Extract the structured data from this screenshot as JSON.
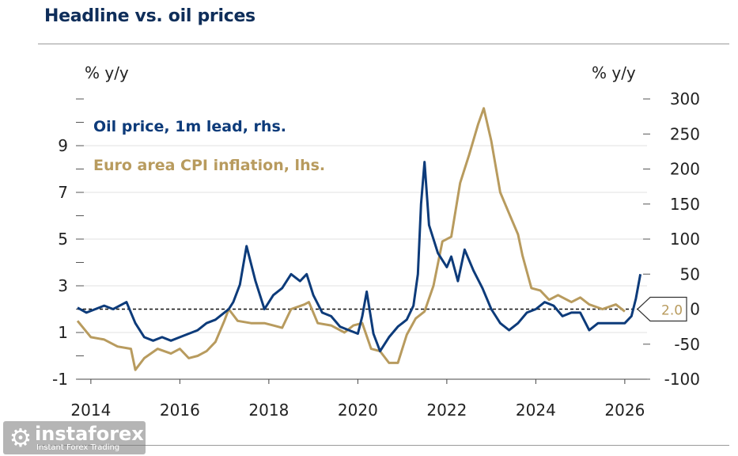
{
  "header": {
    "title": "Headline vs. oil prices"
  },
  "colors": {
    "oil": "#0d3b7a",
    "cpi": "#b89b5e",
    "grid": "#e2e2e2",
    "title": "#0f2e5a"
  },
  "logo": {
    "name": "instaforex",
    "tagline": "Instant Forex Trading",
    "icon": "gear-icon"
  },
  "chart_data": {
    "type": "line",
    "title": "Headline vs. oil prices",
    "left_axis": {
      "label": "% y/y",
      "range": [
        -1,
        11
      ],
      "ticks": [
        -1,
        1,
        3,
        5,
        7,
        9
      ],
      "tick_labels": [
        "-1",
        "1",
        "3",
        "5",
        "7",
        "9"
      ]
    },
    "right_axis": {
      "label": "% y/y",
      "range": [
        -100,
        300
      ],
      "ticks": [
        -100,
        -50,
        0,
        50,
        100,
        150,
        200,
        250,
        300
      ],
      "tick_labels": [
        "-100",
        "-50",
        "0",
        "50",
        "100",
        "150",
        "200",
        "250",
        "300"
      ]
    },
    "x_axis": {
      "range": [
        2013.7,
        2026.5
      ],
      "ticks": [
        2014,
        2016,
        2018,
        2020,
        2022,
        2024,
        2026
      ],
      "tick_labels": [
        "2014",
        "2016",
        "2018",
        "2020",
        "2022",
        "2024",
        "2026"
      ]
    },
    "reference_line": {
      "value": 2.0,
      "axis": "left",
      "label": "2.0",
      "style": "dashed"
    },
    "series": [
      {
        "name": "Oil price, 1m lead, rhs.",
        "axis": "right",
        "x": [
          2013.7,
          2013.9,
          2014.1,
          2014.3,
          2014.5,
          2014.8,
          2015.0,
          2015.2,
          2015.4,
          2015.6,
          2015.8,
          2016.0,
          2016.2,
          2016.4,
          2016.6,
          2016.8,
          2017.0,
          2017.1,
          2017.2,
          2017.35,
          2017.5,
          2017.7,
          2017.9,
          2018.1,
          2018.3,
          2018.5,
          2018.7,
          2018.85,
          2019.0,
          2019.2,
          2019.4,
          2019.6,
          2019.8,
          2020.0,
          2020.1,
          2020.2,
          2020.35,
          2020.5,
          2020.7,
          2020.9,
          2021.1,
          2021.25,
          2021.35,
          2021.42,
          2021.5,
          2021.6,
          2021.8,
          2022.0,
          2022.1,
          2022.25,
          2022.4,
          2022.6,
          2022.8,
          2023.0,
          2023.2,
          2023.4,
          2023.6,
          2023.8,
          2024.0,
          2024.2,
          2024.4,
          2024.6,
          2024.8,
          2025.0,
          2025.2,
          2025.4,
          2025.6,
          2025.8,
          2026.0,
          2026.15,
          2026.25,
          2026.35
        ],
        "values": [
          2,
          -5,
          0,
          5,
          0,
          10,
          -20,
          -40,
          -45,
          -40,
          -45,
          -40,
          -35,
          -30,
          -20,
          -15,
          -5,
          0,
          10,
          35,
          90,
          40,
          0,
          20,
          30,
          50,
          40,
          50,
          20,
          -5,
          -10,
          -25,
          -30,
          -35,
          -10,
          25,
          -35,
          -60,
          -40,
          -25,
          -15,
          5,
          50,
          150,
          210,
          120,
          80,
          60,
          75,
          40,
          85,
          55,
          30,
          0,
          -20,
          -30,
          -20,
          -5,
          0,
          10,
          5,
          -10,
          -5,
          -5,
          -30,
          -20,
          -20,
          -20,
          -20,
          -10,
          15,
          50
        ],
        "color": "#0d3b7a"
      },
      {
        "name": "Euro area CPI inflation, lhs.",
        "axis": "left",
        "x": [
          2013.7,
          2014.0,
          2014.3,
          2014.6,
          2014.9,
          2015.0,
          2015.2,
          2015.5,
          2015.8,
          2016.0,
          2016.2,
          2016.4,
          2016.6,
          2016.8,
          2017.0,
          2017.1,
          2017.3,
          2017.6,
          2017.9,
          2018.1,
          2018.3,
          2018.5,
          2018.8,
          2018.9,
          2019.1,
          2019.4,
          2019.7,
          2019.9,
          2020.1,
          2020.3,
          2020.5,
          2020.7,
          2020.9,
          2021.1,
          2021.3,
          2021.5,
          2021.7,
          2021.9,
          2022.1,
          2022.3,
          2022.5,
          2022.7,
          2022.83,
          2023.0,
          2023.2,
          2023.4,
          2023.6,
          2023.7,
          2023.9,
          2024.1,
          2024.3,
          2024.5,
          2024.8,
          2025.0,
          2025.2,
          2025.5,
          2025.8,
          2026.0
        ],
        "values": [
          1.5,
          0.8,
          0.7,
          0.4,
          0.3,
          -0.6,
          -0.1,
          0.3,
          0.1,
          0.3,
          -0.1,
          0.0,
          0.2,
          0.6,
          1.5,
          2.0,
          1.5,
          1.4,
          1.4,
          1.3,
          1.2,
          2.0,
          2.2,
          2.3,
          1.4,
          1.3,
          1.0,
          1.3,
          1.4,
          0.3,
          0.2,
          -0.3,
          -0.3,
          0.9,
          1.6,
          1.9,
          3.0,
          4.9,
          5.1,
          7.4,
          8.6,
          9.9,
          10.6,
          9.2,
          7.0,
          6.1,
          5.2,
          4.3,
          2.9,
          2.8,
          2.4,
          2.6,
          2.3,
          2.5,
          2.2,
          2.0,
          2.2,
          1.9
        ],
        "color": "#b89b5e"
      }
    ]
  }
}
